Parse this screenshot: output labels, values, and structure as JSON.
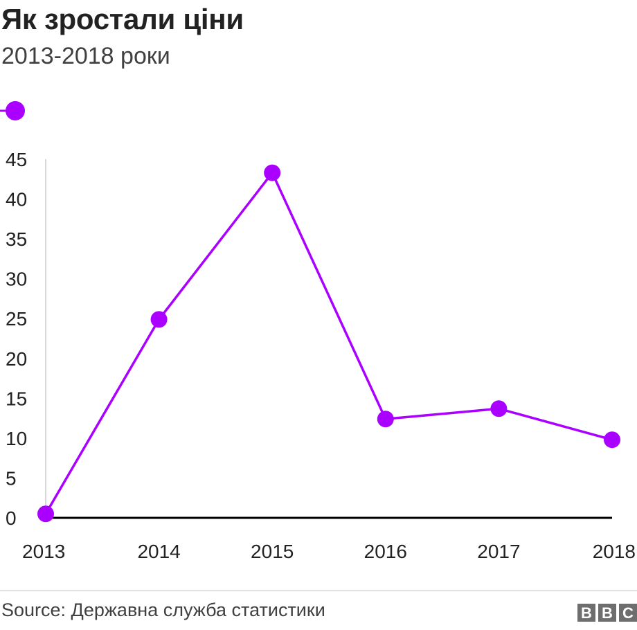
{
  "header": {
    "title": "Як зростали ціни",
    "subtitle": "2013-2018 роки"
  },
  "footer": {
    "source": "Source: Державна служба статистики",
    "logo_letters": [
      "B",
      "B",
      "C"
    ]
  },
  "colors": {
    "series": "#aa00ff",
    "axis": "#000000",
    "grid": "#cccccc",
    "logo": "#6e6e6e"
  },
  "chart_data": {
    "type": "line",
    "title": "Як зростали ціни",
    "subtitle": "2013-2018 роки",
    "xlabel": "",
    "ylabel": "",
    "x": [
      "2013",
      "2014",
      "2015",
      "2016",
      "2017",
      "2018"
    ],
    "series": [
      {
        "values": [
          0.5,
          24.9,
          43.3,
          12.4,
          13.7,
          9.8
        ]
      }
    ],
    "ylim": [
      0,
      45
    ],
    "yticks": [
      "0",
      "5",
      "10",
      "15",
      "20",
      "25",
      "30",
      "35",
      "40",
      "45"
    ],
    "grid": false,
    "legend": "top-left"
  }
}
